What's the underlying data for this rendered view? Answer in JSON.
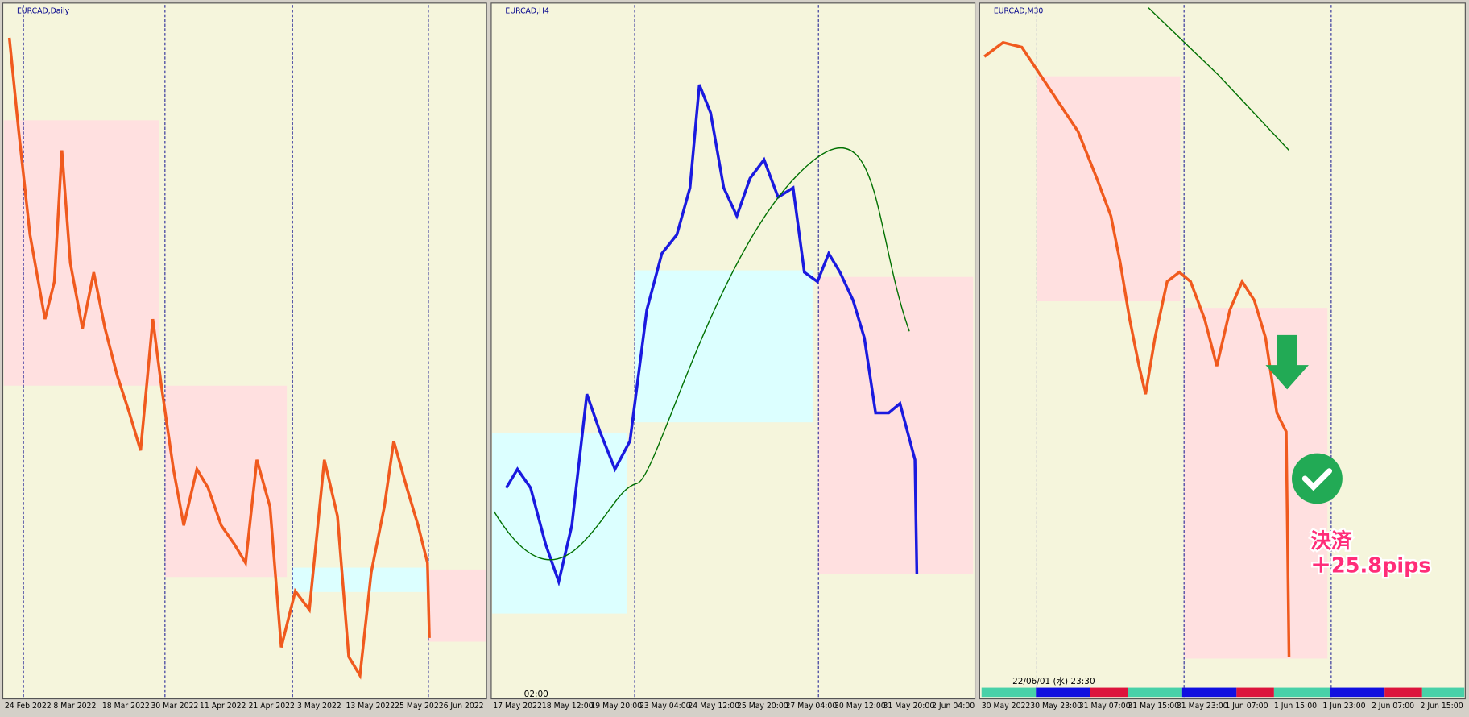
{
  "panels": [
    {
      "title": "EURCAD,Daily",
      "xlabels": [
        "24 Feb 2022",
        "8 Mar 2022",
        "18 Mar 2022",
        "30 Mar 2022",
        "11 Apr 2022",
        "21 Apr 2022",
        "3 May 2022",
        "13 May 2022",
        "25 May 2022",
        "6 Jun 2022"
      ]
    },
    {
      "title": "EURCAD,H4",
      "time": "02:00",
      "xlabels": [
        "17 May 2022",
        "18 May 12:00",
        "19 May 20:00",
        "23 May 04:00",
        "24 May 12:00",
        "25 May 20:00",
        "27 May 04:00",
        "30 May 12:00",
        "31 May 20:00",
        "2 Jun 04:00"
      ]
    },
    {
      "title": "EURCAD,M30",
      "timestamp": "22/06/01 (水) 23:30",
      "xlabels": [
        "30 May 2022",
        "30 May 23:00",
        "31 May 07:00",
        "31 May 15:00",
        "31 May 23:00",
        "1 Jun 07:00",
        "1 Jun 15:00",
        "1 Jun 23:00",
        "2 Jun 07:00",
        "2 Jun 15:00"
      ]
    }
  ],
  "annotation": {
    "line1": "決済",
    "line2": "＋25.8pips"
  }
}
